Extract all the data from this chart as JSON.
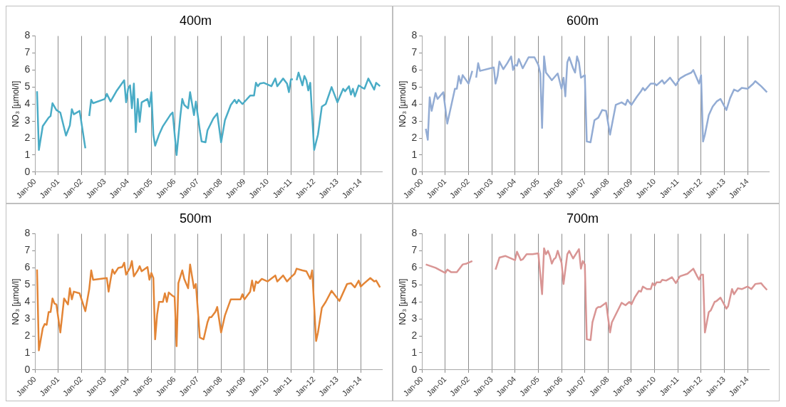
{
  "chart_data": [
    {
      "type": "line",
      "title": "400m",
      "ylabel": "NO₃ [µmol/l]",
      "grid": "x",
      "xlim": [
        "2000-01",
        "2014-12"
      ],
      "xticks": [
        {
          "value": "2000-01",
          "label": "Jan-00"
        },
        {
          "value": "2001-01",
          "label": "Jan-01"
        },
        {
          "value": "2002-01",
          "label": "Jan-02"
        },
        {
          "value": "2003-01",
          "label": "Jan-03"
        },
        {
          "value": "2004-01",
          "label": "Jan-04"
        },
        {
          "value": "2005-01",
          "label": "Jan-05"
        },
        {
          "value": "2006-01",
          "label": "Jan-06"
        },
        {
          "value": "2007-01",
          "label": "Jan-07"
        },
        {
          "value": "2008-01",
          "label": "Jan-08"
        },
        {
          "value": "2009-01",
          "label": "Jan-09"
        },
        {
          "value": "2010-01",
          "label": "Jan-10"
        },
        {
          "value": "2011-01",
          "label": "Jan-11"
        },
        {
          "value": "2012-01",
          "label": "Jan-12"
        },
        {
          "value": "2013-01",
          "label": "Jan-13"
        },
        {
          "value": "2014-01",
          "label": "Jan-14"
        }
      ],
      "ylim": [
        0,
        8
      ],
      "yticks": [
        0,
        1,
        2,
        3,
        4,
        5,
        6,
        7,
        8
      ],
      "x": [
        "2000-02",
        "2000-03",
        "2000-05",
        "2000-08",
        "2000-09",
        "2000-10",
        "2000-12",
        "2001-02",
        "2001-05",
        "2001-07",
        "2001-08",
        "2001-09",
        "2001-12",
        "2002-03",
        "2002-04",
        "2002-05",
        "2002-06",
        "2002-07",
        "2003-01",
        "2003-02",
        "2003-04",
        "2003-07",
        "2003-11",
        "2003-12",
        "2004-01",
        "2004-02",
        "2004-03",
        "2004-04",
        "2004-05",
        "2004-06",
        "2004-07",
        "2004-08",
        "2004-11",
        "2004-12",
        "2005-01",
        "2005-02",
        "2005-03",
        "2005-05",
        "2005-07",
        "2005-11",
        "2005-12",
        "2006-02",
        "2006-04",
        "2006-05",
        "2006-06",
        "2006-08",
        "2006-09",
        "2006-11",
        "2006-12",
        "2007-02",
        "2007-03",
        "2007-05",
        "2007-06",
        "2007-09",
        "2007-11",
        "2008-01",
        "2008-03",
        "2008-06",
        "2008-08",
        "2008-09",
        "2008-10",
        "2008-12",
        "2009-04",
        "2009-06",
        "2009-07",
        "2009-08",
        "2009-09",
        "2009-11",
        "2010-03",
        "2010-05",
        "2010-06",
        "2010-09",
        "2010-11",
        "2010-12",
        "2011-01",
        "2011-02",
        "2011-03",
        "2011-04",
        "2011-05",
        "2011-07",
        "2011-08",
        "2011-09",
        "2011-10",
        "2011-11",
        "2012-01",
        "2012-03",
        "2012-05",
        "2012-07",
        "2012-10",
        "2013-01",
        "2013-04",
        "2013-05",
        "2013-07",
        "2013-08",
        "2013-09",
        "2013-10",
        "2013-12",
        "2014-02",
        "2014-03",
        "2014-05",
        "2014-08",
        "2014-09",
        "2014-11"
      ],
      "series": [
        {
          "color": "#4aacc6",
          "values": [
            4.75,
            1.3,
            2.7,
            3.2,
            3.3,
            4.05,
            3.65,
            3.5,
            2.15,
            2.75,
            3.7,
            3.4,
            3.6,
            1.4,
            null,
            3.3,
            4.25,
            4.05,
            4.3,
            4.6,
            4.15,
            4.75,
            5.4,
            4.1,
            4.9,
            5.1,
            3.75,
            5.2,
            2.35,
            4.3,
            2.95,
            4.1,
            4.3,
            3.85,
            4.7,
            2.2,
            1.55,
            2.2,
            2.7,
            3.4,
            3.5,
            1.0,
            3.3,
            4.3,
            3.95,
            3.75,
            4.7,
            3.35,
            4.15,
            2.45,
            1.8,
            1.75,
            2.45,
            3.15,
            3.45,
            1.75,
            3.05,
            3.95,
            4.25,
            4.05,
            4.25,
            4.0,
            4.5,
            4.5,
            5.25,
            5.05,
            5.2,
            5.25,
            5.05,
            5.5,
            5.05,
            5.5,
            5.2,
            4.7,
            5.45,
            5.45,
            null,
            5.4,
            5.85,
            5.1,
            5.65,
            5.4,
            4.8,
            5.25,
            1.3,
            2.2,
            3.85,
            4.0,
            5.0,
            4.1,
            4.9,
            4.75,
            5.05,
            4.55,
            4.9,
            4.45,
            5.1,
            4.95,
            4.9,
            5.5,
            4.85,
            5.25,
            5.05
          ]
        }
      ]
    },
    {
      "type": "line",
      "title": "600m",
      "ylabel": "NO₃ [µmol/l]",
      "grid": "x",
      "xlim": [
        "2000-01",
        "2014-12"
      ],
      "xticks": [
        {
          "value": "2000-01",
          "label": "Jan-00"
        },
        {
          "value": "2001-01",
          "label": "Jan-01"
        },
        {
          "value": "2002-01",
          "label": "Jan-02"
        },
        {
          "value": "2003-01",
          "label": "Jan-03"
        },
        {
          "value": "2004-01",
          "label": "Jan-04"
        },
        {
          "value": "2005-01",
          "label": "Jan-05"
        },
        {
          "value": "2006-01",
          "label": "Jan-06"
        },
        {
          "value": "2007-01",
          "label": "Jan-07"
        },
        {
          "value": "2008-01",
          "label": "Jan-08"
        },
        {
          "value": "2009-01",
          "label": "Jan-09"
        },
        {
          "value": "2010-01",
          "label": "Jan-10"
        },
        {
          "value": "2011-01",
          "label": "Jan-11"
        },
        {
          "value": "2012-01",
          "label": "Jan-12"
        },
        {
          "value": "2013-01",
          "label": "Jan-13"
        },
        {
          "value": "2014-01",
          "label": "Jan-14"
        }
      ],
      "ylim": [
        0,
        8
      ],
      "yticks": [
        0,
        1,
        2,
        3,
        4,
        5,
        6,
        7,
        8
      ],
      "x": [
        "2000-03",
        "2000-04",
        "2000-05",
        "2000-06",
        "2000-08",
        "2000-09",
        "2000-12",
        "2001-02",
        "2001-06",
        "2001-07",
        "2001-08",
        "2001-09",
        "2001-10",
        "2002-01",
        "2002-03",
        "2002-04",
        "2002-05",
        "2002-06",
        "2002-07",
        "2003-02",
        "2003-03",
        "2003-04",
        "2003-05",
        "2003-07",
        "2003-09",
        "2003-11",
        "2003-12",
        "2004-01",
        "2004-02",
        "2004-03",
        "2004-05",
        "2004-08",
        "2004-11",
        "2005-01",
        "2005-02",
        "2005-03",
        "2005-04",
        "2005-05",
        "2005-06",
        "2005-08",
        "2005-11",
        "2006-01",
        "2006-02",
        "2006-03",
        "2006-04",
        "2006-05",
        "2006-07",
        "2006-08",
        "2006-09",
        "2006-10",
        "2006-11",
        "2007-01",
        "2007-02",
        "2007-04",
        "2007-06",
        "2007-08",
        "2007-10",
        "2007-12",
        "2008-02",
        "2008-05",
        "2008-08",
        "2008-10",
        "2008-11",
        "2009-01",
        "2009-04",
        "2009-06",
        "2009-07",
        "2009-08",
        "2009-11",
        "2010-01",
        "2010-02",
        "2010-05",
        "2010-06",
        "2010-09",
        "2010-12",
        "2011-02",
        "2011-05",
        "2011-08",
        "2011-09",
        "2011-12",
        "2012-01",
        "2012-02",
        "2012-03",
        "2012-05",
        "2012-07",
        "2012-09",
        "2012-11",
        "2013-02",
        "2013-04",
        "2013-06",
        "2013-08",
        "2013-10",
        "2014-01",
        "2014-04",
        "2014-05",
        "2014-08",
        "2014-11"
      ],
      "series": [
        {
          "color": "#93acd4",
          "values": [
            2.55,
            1.9,
            4.4,
            3.6,
            4.65,
            4.3,
            4.7,
            2.85,
            4.9,
            4.9,
            5.65,
            5.2,
            5.7,
            5.2,
            5.95,
            null,
            5.55,
            6.4,
            5.95,
            6.15,
            5.2,
            5.65,
            6.5,
            6.05,
            6.4,
            6.8,
            6.0,
            6.3,
            6.25,
            6.65,
            6.1,
            6.75,
            6.75,
            6.3,
            5.8,
            2.6,
            6.8,
            5.85,
            5.7,
            5.4,
            5.8,
            4.9,
            5.55,
            4.45,
            6.45,
            6.75,
            6.1,
            5.85,
            6.8,
            6.45,
            5.55,
            5.7,
            1.8,
            1.75,
            3.05,
            3.2,
            3.65,
            3.6,
            2.2,
            3.95,
            4.1,
            3.95,
            4.25,
            3.95,
            4.45,
            4.75,
            4.95,
            4.8,
            5.2,
            5.2,
            5.1,
            5.4,
            5.2,
            5.55,
            5.1,
            5.5,
            5.7,
            5.85,
            6.0,
            5.2,
            5.7,
            1.8,
            2.2,
            3.35,
            3.85,
            4.15,
            4.3,
            3.65,
            4.35,
            4.85,
            4.75,
            4.95,
            4.9,
            5.2,
            5.35,
            5.05,
            4.7
          ]
        }
      ]
    },
    {
      "type": "line",
      "title": "500m",
      "ylabel": "NO₃ [µmol/l]",
      "grid": "x",
      "xlim": [
        "2000-01",
        "2014-12"
      ],
      "xticks": [
        {
          "value": "2000-01",
          "label": "Jan-00"
        },
        {
          "value": "2001-01",
          "label": "Jan-01"
        },
        {
          "value": "2002-01",
          "label": "Jan-02"
        },
        {
          "value": "2003-01",
          "label": "Jan-03"
        },
        {
          "value": "2004-01",
          "label": "Jan-04"
        },
        {
          "value": "2005-01",
          "label": "Jan-05"
        },
        {
          "value": "2006-01",
          "label": "Jan-06"
        },
        {
          "value": "2007-01",
          "label": "Jan-07"
        },
        {
          "value": "2008-01",
          "label": "Jan-08"
        },
        {
          "value": "2009-01",
          "label": "Jan-09"
        },
        {
          "value": "2010-01",
          "label": "Jan-10"
        },
        {
          "value": "2011-01",
          "label": "Jan-11"
        },
        {
          "value": "2012-01",
          "label": "Jan-12"
        },
        {
          "value": "2013-01",
          "label": "Jan-13"
        },
        {
          "value": "2014-01",
          "label": "Jan-14"
        }
      ],
      "ylim": [
        0,
        8
      ],
      "yticks": [
        0,
        1,
        2,
        3,
        4,
        5,
        6,
        7,
        8
      ],
      "x": [
        "2000-02",
        "2000-03",
        "2000-05",
        "2000-06",
        "2000-07",
        "2000-08",
        "2000-09",
        "2000-10",
        "2000-11",
        "2000-12",
        "2001-02",
        "2001-04",
        "2001-06",
        "2001-07",
        "2001-08",
        "2001-09",
        "2001-12",
        "2002-03",
        "2002-05",
        "2002-06",
        "2002-07",
        "2003-02",
        "2003-03",
        "2003-04",
        "2003-05",
        "2003-06",
        "2003-08",
        "2003-10",
        "2003-11",
        "2003-12",
        "2004-02",
        "2004-03",
        "2004-04",
        "2004-06",
        "2004-07",
        "2004-08",
        "2004-11",
        "2004-12",
        "2005-01",
        "2005-02",
        "2005-03",
        "2005-04",
        "2005-05",
        "2005-07",
        "2005-08",
        "2005-09",
        "2005-10",
        "2005-12",
        "2006-01",
        "2006-02",
        "2006-03",
        "2006-05",
        "2006-06",
        "2006-08",
        "2006-09",
        "2006-11",
        "2006-12",
        "2007-02",
        "2007-04",
        "2007-06",
        "2007-07",
        "2007-08",
        "2007-10",
        "2007-11",
        "2008-01",
        "2008-03",
        "2008-06",
        "2008-11",
        "2008-12",
        "2009-01",
        "2009-04",
        "2009-05",
        "2009-06",
        "2009-07",
        "2009-08",
        "2009-10",
        "2010-01",
        "2010-05",
        "2010-06",
        "2010-09",
        "2010-11",
        "2011-01",
        "2011-03",
        "2011-04",
        "2011-07",
        "2011-09",
        "2011-11",
        "2011-12",
        "2012-02",
        "2012-03",
        "2012-05",
        "2012-07",
        "2012-10",
        "2013-02",
        "2013-06",
        "2013-08",
        "2013-10",
        "2013-12",
        "2014-01",
        "2014-03",
        "2014-06",
        "2014-08",
        "2014-09",
        "2014-11"
      ],
      "series": [
        {
          "color": "#e38536",
          "values": [
            5.9,
            1.15,
            2.45,
            2.7,
            2.65,
            3.4,
            3.4,
            4.2,
            3.9,
            3.85,
            2.2,
            4.2,
            3.85,
            4.8,
            4.15,
            4.6,
            4.5,
            3.45,
            4.75,
            5.85,
            5.3,
            5.4,
            4.6,
            5.3,
            5.9,
            5.65,
            6.0,
            6.05,
            6.3,
            5.6,
            6.0,
            6.4,
            5.5,
            5.85,
            6.1,
            5.8,
            6.05,
            5.3,
            5.7,
            5.4,
            1.8,
            3.25,
            4.0,
            4.0,
            4.5,
            4.0,
            4.55,
            4.35,
            4.3,
            1.4,
            5.1,
            5.85,
            5.35,
            4.8,
            6.2,
            4.8,
            5.05,
            1.9,
            1.8,
            2.8,
            3.1,
            3.1,
            3.4,
            3.7,
            2.2,
            3.2,
            4.15,
            4.15,
            4.45,
            4.15,
            4.6,
            5.25,
            4.65,
            5.2,
            5.1,
            5.35,
            5.2,
            5.55,
            5.2,
            5.55,
            5.2,
            5.45,
            5.65,
            5.95,
            5.85,
            5.8,
            5.35,
            5.85,
            1.7,
            2.2,
            3.65,
            4.0,
            4.65,
            4.05,
            5.05,
            5.1,
            4.85,
            5.25,
            4.9,
            5.1,
            5.4,
            5.2,
            5.25,
            4.85
          ]
        }
      ]
    },
    {
      "type": "line",
      "title": "700m",
      "ylabel": "NO₃ [µmol/l]",
      "grid": "x",
      "xlim": [
        "2000-01",
        "2014-12"
      ],
      "xticks": [
        {
          "value": "2000-01",
          "label": "Jan-00"
        },
        {
          "value": "2001-01",
          "label": "Jan-01"
        },
        {
          "value": "2002-01",
          "label": "Jan-02"
        },
        {
          "value": "2003-01",
          "label": "Jan-03"
        },
        {
          "value": "2004-01",
          "label": "Jan-04"
        },
        {
          "value": "2005-01",
          "label": "Jan-05"
        },
        {
          "value": "2006-01",
          "label": "Jan-06"
        },
        {
          "value": "2007-01",
          "label": "Jan-07"
        },
        {
          "value": "2008-01",
          "label": "Jan-08"
        },
        {
          "value": "2009-01",
          "label": "Jan-09"
        },
        {
          "value": "2010-01",
          "label": "Jan-10"
        },
        {
          "value": "2011-01",
          "label": "Jan-11"
        },
        {
          "value": "2012-01",
          "label": "Jan-12"
        },
        {
          "value": "2013-01",
          "label": "Jan-13"
        },
        {
          "value": "2014-01",
          "label": "Jan-14"
        }
      ],
      "ylim": [
        0,
        8
      ],
      "yticks": [
        0,
        1,
        2,
        3,
        4,
        5,
        6,
        7,
        8
      ],
      "x": [
        "2000-03",
        "2000-08",
        "2001-01",
        "2001-02",
        "2001-04",
        "2001-07",
        "2001-10",
        "2001-12",
        "2002-03",
        "2002-06",
        "2003-03",
        "2003-05",
        "2003-08",
        "2004-01",
        "2004-02",
        "2004-04",
        "2004-05",
        "2004-07",
        "2004-10",
        "2005-01",
        "2005-03",
        "2005-04",
        "2005-05",
        "2005-06",
        "2005-07",
        "2005-08",
        "2005-09",
        "2005-10",
        "2005-11",
        "2006-01",
        "2006-02",
        "2006-04",
        "2006-05",
        "2006-07",
        "2006-10",
        "2006-11",
        "2006-12",
        "2007-01",
        "2007-02",
        "2007-04",
        "2007-05",
        "2007-07",
        "2007-08",
        "2007-09",
        "2007-12",
        "2008-02",
        "2008-03",
        "2008-08",
        "2008-10",
        "2008-12",
        "2009-01",
        "2009-03",
        "2009-05",
        "2009-06",
        "2009-07",
        "2009-09",
        "2009-11",
        "2009-12",
        "2010-01",
        "2010-02",
        "2010-04",
        "2010-05",
        "2010-07",
        "2010-10",
        "2010-12",
        "2011-02",
        "2011-06",
        "2011-09",
        "2011-11",
        "2011-12",
        "2012-01",
        "2012-02",
        "2012-03",
        "2012-05",
        "2012-06",
        "2012-08",
        "2012-09",
        "2012-11",
        "2013-02",
        "2013-03",
        "2013-05",
        "2013-06",
        "2013-08",
        "2013-10",
        "2014-01",
        "2014-03",
        "2014-05",
        "2014-08",
        "2014-09",
        "2014-11"
      ],
      "series": [
        {
          "color": "#d99594",
          "values": [
            6.2,
            6.0,
            5.7,
            5.9,
            5.75,
            5.75,
            6.2,
            6.25,
            6.4,
            null,
            5.9,
            6.6,
            6.7,
            6.45,
            6.95,
            6.45,
            6.5,
            6.8,
            6.8,
            6.85,
            4.45,
            7.15,
            6.8,
            7.0,
            6.7,
            6.25,
            6.5,
            6.6,
            7.0,
            6.3,
            5.05,
            6.8,
            7.0,
            6.55,
            7.1,
            5.95,
            6.4,
            6.2,
            1.8,
            1.75,
            2.8,
            3.6,
            3.7,
            3.7,
            3.95,
            2.2,
            2.8,
            3.95,
            3.8,
            4.0,
            3.85,
            4.3,
            4.65,
            4.6,
            4.9,
            4.75,
            4.75,
            5.1,
            4.95,
            5.15,
            5.15,
            5.3,
            5.25,
            5.45,
            5.1,
            5.5,
            5.65,
            5.95,
            5.5,
            5.3,
            5.6,
            5.6,
            2.2,
            3.4,
            3.5,
            4.0,
            4.05,
            4.25,
            3.6,
            3.75,
            4.75,
            4.45,
            4.8,
            4.75,
            4.9,
            4.75,
            5.05,
            5.1,
            4.95,
            4.7
          ]
        }
      ]
    }
  ]
}
